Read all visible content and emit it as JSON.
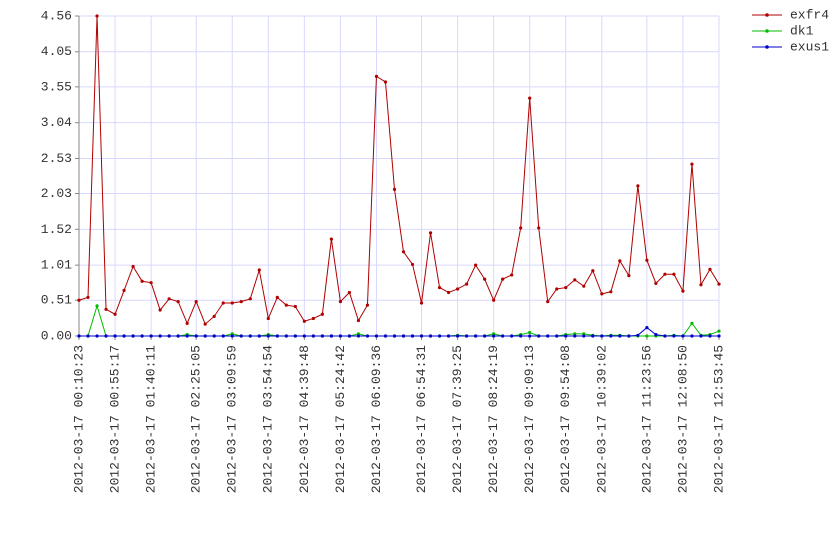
{
  "chart_data": {
    "type": "line",
    "categories": [
      "2012-03-17 00:10:23",
      null,
      null,
      null,
      "2012-03-17 00:55:17",
      null,
      null,
      null,
      "2012-03-17 01:40:11",
      null,
      null,
      null,
      null,
      "2012-03-17 02:25:05",
      null,
      null,
      null,
      "2012-03-17 03:09:59",
      null,
      null,
      null,
      "2012-03-17 03:54:54",
      null,
      null,
      null,
      "2012-03-17 04:39:48",
      null,
      null,
      null,
      "2012-03-17 05:24:42",
      null,
      null,
      null,
      "2012-03-17 06:09:36",
      null,
      null,
      null,
      null,
      "2012-03-17 06:54:31",
      null,
      null,
      null,
      "2012-03-17 07:39:25",
      null,
      null,
      null,
      "2012-03-17 08:24:19",
      null,
      null,
      null,
      "2012-03-17 09:09:13",
      null,
      null,
      null,
      "2012-03-17 09:54:08",
      null,
      null,
      null,
      "2012-03-17 10:39:02",
      null,
      null,
      null,
      null,
      "2012-03-17 11:23:56",
      null,
      null,
      null,
      "2012-03-17 12:08:50",
      null,
      null,
      null,
      "2012-03-17 12:53:45"
    ],
    "series": [
      {
        "name": "exfr4",
        "color": "#b00000",
        "values": [
          0.51,
          0.55,
          4.56,
          0.38,
          0.31,
          0.65,
          0.99,
          0.78,
          0.76,
          0.37,
          0.53,
          0.49,
          0.18,
          0.49,
          0.17,
          0.28,
          0.47,
          0.47,
          0.49,
          0.53,
          0.94,
          0.25,
          0.55,
          0.44,
          0.42,
          0.21,
          0.25,
          0.31,
          1.38,
          0.49,
          0.62,
          0.22,
          0.44,
          3.7,
          3.62,
          2.09,
          1.2,
          1.02,
          0.47,
          1.47,
          0.69,
          0.62,
          0.67,
          0.74,
          1.01,
          0.81,
          0.51,
          0.81,
          0.87,
          1.54,
          3.39,
          1.54,
          0.49,
          0.67,
          0.69,
          0.8,
          0.71,
          0.93,
          0.6,
          0.63,
          1.07,
          0.86,
          2.14,
          1.08,
          0.75,
          0.88,
          0.88,
          0.64,
          2.45,
          0.73,
          0.95,
          0.74
        ]
      },
      {
        "name": "dk1",
        "color": "#00bb00",
        "values": [
          0,
          0,
          0.43,
          0,
          0,
          0,
          0,
          0,
          0,
          0,
          0,
          0,
          0.02,
          0,
          0,
          0,
          0,
          0.03,
          0,
          0,
          0,
          0.02,
          0,
          0,
          0,
          0,
          0,
          0,
          0,
          0,
          0,
          0.03,
          0,
          0,
          0,
          0,
          0,
          0,
          0,
          0,
          0,
          0,
          0.01,
          0,
          0,
          0,
          0.03,
          0,
          0,
          0.02,
          0.05,
          0,
          0,
          0,
          0.02,
          0.03,
          0.03,
          0.01,
          0,
          0.01,
          0.01,
          0,
          0,
          0,
          0,
          0,
          0.01,
          0,
          0.18,
          0.01,
          0.02,
          0.07
        ]
      },
      {
        "name": "exus1",
        "color": "#0000cc",
        "values": [
          0,
          0,
          0,
          0,
          0,
          0,
          0,
          0,
          0,
          0,
          0,
          0,
          0,
          0,
          0,
          0,
          0,
          0,
          0,
          0,
          0,
          0,
          0,
          0,
          0,
          0,
          0,
          0,
          0,
          0,
          0,
          0,
          0,
          0,
          0,
          0,
          0,
          0,
          0,
          0,
          0,
          0,
          0,
          0,
          0,
          0,
          0,
          0,
          0,
          0,
          0,
          0,
          0,
          0,
          0,
          0,
          0,
          0,
          0,
          0,
          0,
          0,
          0.01,
          0.12,
          0.02,
          0,
          0,
          0,
          0,
          0,
          0,
          0
        ]
      }
    ],
    "ylim": [
      0,
      4.56
    ],
    "yticks": [
      {
        "value": 0,
        "label": "0.00"
      },
      0.51,
      1.01,
      1.52,
      2.03,
      2.53,
      3.04,
      3.55,
      4.05,
      4.56
    ],
    "grid": true,
    "legend": "top-right"
  }
}
